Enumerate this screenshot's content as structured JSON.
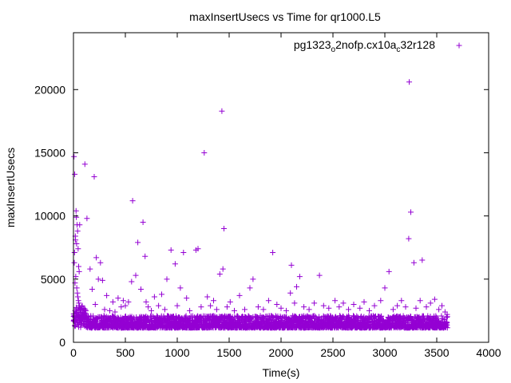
{
  "chart_data": {
    "type": "scatter",
    "title": "maxInsertUsecs vs Time for qr1000.L5",
    "xlabel": "Time(s)",
    "ylabel": "maxInsertUsecs",
    "xlim": [
      0,
      4000
    ],
    "ylim": [
      0,
      24500
    ],
    "xticks": [
      0,
      500,
      1000,
      1500,
      2000,
      2500,
      3000,
      3500,
      4000
    ],
    "yticks": [
      0,
      5000,
      10000,
      15000,
      20000
    ],
    "grid": false,
    "legend": "top-right",
    "series": [
      {
        "name_parts": [
          "pg1323",
          "o",
          "2nofp.cx10a",
          "c",
          "32r128"
        ],
        "marker": "+",
        "color": "#9400d3",
        "points": [
          [
            5,
            14700
          ],
          [
            12,
            13300
          ],
          [
            18,
            8400
          ],
          [
            20,
            8100
          ],
          [
            25,
            10400
          ],
          [
            28,
            9900
          ],
          [
            30,
            7800
          ],
          [
            35,
            9300
          ],
          [
            40,
            8800
          ],
          [
            45,
            7400
          ],
          [
            50,
            6000
          ],
          [
            55,
            5600
          ],
          [
            60,
            9300
          ],
          [
            8,
            6300
          ],
          [
            10,
            7100
          ],
          [
            15,
            4700
          ],
          [
            22,
            5200
          ],
          [
            32,
            4300
          ],
          [
            38,
            3900
          ],
          [
            42,
            3600
          ],
          [
            48,
            3300
          ],
          [
            52,
            3100
          ],
          [
            58,
            2900
          ],
          [
            65,
            2700
          ],
          [
            70,
            2600
          ],
          [
            75,
            2400
          ],
          [
            80,
            2200
          ],
          [
            85,
            2900
          ],
          [
            90,
            2300
          ],
          [
            95,
            2100
          ],
          [
            110,
            14100
          ],
          [
            130,
            9800
          ],
          [
            160,
            5800
          ],
          [
            180,
            4200
          ],
          [
            200,
            13100
          ],
          [
            210,
            3000
          ],
          [
            220,
            6700
          ],
          [
            240,
            5000
          ],
          [
            260,
            6300
          ],
          [
            280,
            4900
          ],
          [
            300,
            2600
          ],
          [
            320,
            3700
          ],
          [
            350,
            2500
          ],
          [
            380,
            3200
          ],
          [
            400,
            2400
          ],
          [
            430,
            3500
          ],
          [
            460,
            2800
          ],
          [
            480,
            3300
          ],
          [
            500,
            2900
          ],
          [
            530,
            3200
          ],
          [
            560,
            4800
          ],
          [
            570,
            11200
          ],
          [
            600,
            5300
          ],
          [
            620,
            7900
          ],
          [
            650,
            4200
          ],
          [
            670,
            9500
          ],
          [
            690,
            6800
          ],
          [
            700,
            3200
          ],
          [
            720,
            2800
          ],
          [
            750,
            2500
          ],
          [
            780,
            3600
          ],
          [
            820,
            2900
          ],
          [
            850,
            3800
          ],
          [
            880,
            2600
          ],
          [
            900,
            5000
          ],
          [
            940,
            7300
          ],
          [
            980,
            6200
          ],
          [
            1000,
            2900
          ],
          [
            1030,
            4300
          ],
          [
            1060,
            7100
          ],
          [
            1090,
            3500
          ],
          [
            1120,
            2500
          ],
          [
            1180,
            7300
          ],
          [
            1200,
            7400
          ],
          [
            1230,
            2800
          ],
          [
            1260,
            15000
          ],
          [
            1290,
            3600
          ],
          [
            1320,
            2900
          ],
          [
            1350,
            3300
          ],
          [
            1380,
            2600
          ],
          [
            1410,
            5400
          ],
          [
            1430,
            18300
          ],
          [
            1440,
            5800
          ],
          [
            1450,
            9000
          ],
          [
            1480,
            2800
          ],
          [
            1510,
            3200
          ],
          [
            1550,
            2500
          ],
          [
            1600,
            3700
          ],
          [
            1650,
            2600
          ],
          [
            1700,
            4300
          ],
          [
            1730,
            5000
          ],
          [
            1780,
            2800
          ],
          [
            1830,
            2600
          ],
          [
            1880,
            3300
          ],
          [
            1920,
            7100
          ],
          [
            1960,
            3000
          ],
          [
            2000,
            2700
          ],
          [
            2050,
            2500
          ],
          [
            2090,
            3900
          ],
          [
            2100,
            6100
          ],
          [
            2130,
            3100
          ],
          [
            2150,
            4400
          ],
          [
            2180,
            5200
          ],
          [
            2220,
            2800
          ],
          [
            2270,
            2600
          ],
          [
            2320,
            3100
          ],
          [
            2370,
            5300
          ],
          [
            2410,
            2900
          ],
          [
            2460,
            2700
          ],
          [
            2520,
            3300
          ],
          [
            2560,
            2800
          ],
          [
            2600,
            3100
          ],
          [
            2650,
            2600
          ],
          [
            2700,
            3000
          ],
          [
            2760,
            2700
          ],
          [
            2800,
            3200
          ],
          [
            2850,
            2500
          ],
          [
            2900,
            2900
          ],
          [
            2960,
            3300
          ],
          [
            3000,
            4300
          ],
          [
            3040,
            5600
          ],
          [
            3080,
            2600
          ],
          [
            3120,
            2900
          ],
          [
            3160,
            3300
          ],
          [
            3200,
            2800
          ],
          [
            3230,
            8200
          ],
          [
            3235,
            20600
          ],
          [
            3250,
            10300
          ],
          [
            3280,
            6300
          ],
          [
            3300,
            2700
          ],
          [
            3340,
            3300
          ],
          [
            3360,
            6500
          ],
          [
            3400,
            2800
          ],
          [
            3440,
            3100
          ],
          [
            3480,
            3400
          ],
          [
            3520,
            2600
          ],
          [
            3550,
            2900
          ],
          [
            3580,
            2400
          ],
          [
            3600,
            2200
          ]
        ],
        "band": {
          "x_start": 0,
          "x_end": 3600,
          "y_min": 1150,
          "y_max": 2100
        }
      }
    ]
  }
}
